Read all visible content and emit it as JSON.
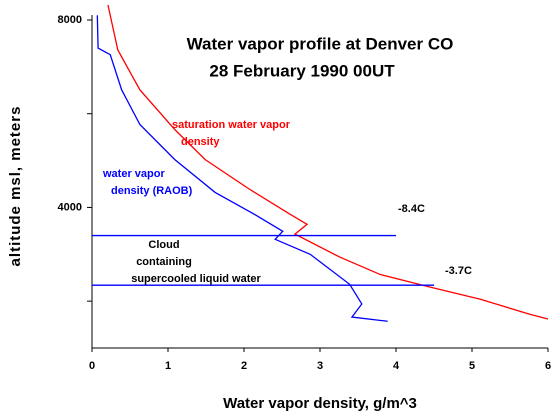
{
  "chart_data": {
    "type": "line",
    "title": [
      "Water vapor profile at Denver CO",
      "28 February 1990 00UT"
    ],
    "x_label": "Water vapor density, g/m^3",
    "y_label": "altitude msl, meters",
    "xlim": [
      0,
      6
    ],
    "xticks": [
      0,
      1,
      2,
      3,
      4,
      5,
      6
    ],
    "ylim": [
      1000,
      8000
    ],
    "yticks": [
      4000,
      8000
    ],
    "yticks_minor": [
      2000,
      6000
    ],
    "series": [
      {
        "name": "saturation water vapor density",
        "label": [
          "saturation water vapor",
          "density"
        ],
        "color": "#ff0000",
        "x": [
          0.21,
          0.34,
          0.63,
          1.09,
          1.49,
          2.08,
          2.61,
          2.83,
          2.67,
          3.26,
          3.79,
          4.45,
          5.11,
          5.76,
          6.0
        ],
        "values": [
          8320,
          7360,
          6510,
          5660,
          5020,
          4380,
          3850,
          3640,
          3430,
          2940,
          2570,
          2300,
          2040,
          1720,
          1620
        ]
      },
      {
        "name": "water vapor density (RAOB)",
        "label": [
          "water vapor",
          "density (RAOB)"
        ],
        "color": "#0000ff",
        "x": [
          0.07,
          0.08,
          0.24,
          0.39,
          0.63,
          1.09,
          1.62,
          2.14,
          2.51,
          2.41,
          2.87,
          3.39,
          3.55,
          3.42,
          3.89
        ],
        "values": [
          8100,
          7400,
          7260,
          6510,
          5770,
          5020,
          4320,
          3850,
          3490,
          3320,
          3000,
          2360,
          1940,
          1660,
          1570
        ]
      }
    ],
    "hlines": [
      {
        "y": 3400,
        "x_end": 4.0,
        "label": "-8.4C"
      },
      {
        "y": 2340,
        "x_end": 4.5,
        "label": "-3.7C"
      }
    ],
    "cloud_label": [
      "Cloud",
      "containing",
      "supercooled liquid water"
    ]
  }
}
